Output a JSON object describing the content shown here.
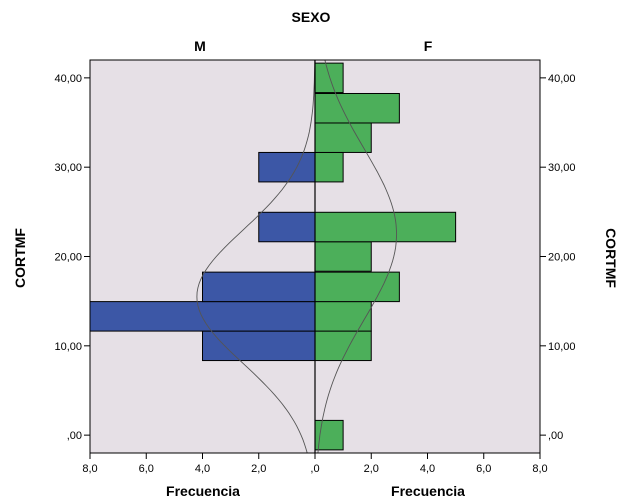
{
  "chart_data": {
    "type": "bar",
    "title": "SEXO",
    "ylabel": "CORTMF",
    "xlabel": "Frecuencia",
    "ylim": [
      -2,
      42
    ],
    "xlim": [
      0,
      8
    ],
    "y_ticks": [
      ",00",
      "10,00",
      "20,00",
      "30,00",
      "40,00"
    ],
    "x_ticks": [
      "8,0",
      "6,0",
      "4,0",
      "2,0",
      ",0",
      "2,0",
      "4,0",
      "6,0",
      "8,0"
    ],
    "bin_width": 3.3,
    "series": [
      {
        "name": "M",
        "color": "#3c57a6",
        "bins": [
          {
            "y": 10,
            "freq": 4
          },
          {
            "y": 13.3,
            "freq": 8
          },
          {
            "y": 16.6,
            "freq": 4
          },
          {
            "y": 23.3,
            "freq": 2
          },
          {
            "y": 30,
            "freq": 2
          }
        ]
      },
      {
        "name": "F",
        "color": "#4caf5a",
        "bins": [
          {
            "y": 0,
            "freq": 1
          },
          {
            "y": 10,
            "freq": 2
          },
          {
            "y": 13.3,
            "freq": 2
          },
          {
            "y": 16.6,
            "freq": 3
          },
          {
            "y": 20,
            "freq": 2
          },
          {
            "y": 23.3,
            "freq": 5
          },
          {
            "y": 30,
            "freq": 1
          },
          {
            "y": 33.3,
            "freq": 2
          },
          {
            "y": 36.6,
            "freq": 3
          },
          {
            "y": 40,
            "freq": 1
          }
        ]
      }
    ],
    "normal_curves": [
      {
        "group": "M",
        "peak_freq": 4.2,
        "mean": 15.5,
        "sd": 7.5
      },
      {
        "group": "F",
        "peak_freq": 2.9,
        "mean": 22.5,
        "sd": 9.5
      }
    ],
    "colors": {
      "plot_bg": "#e6e0e6",
      "edge": "#000000",
      "curve": "#555555"
    }
  }
}
